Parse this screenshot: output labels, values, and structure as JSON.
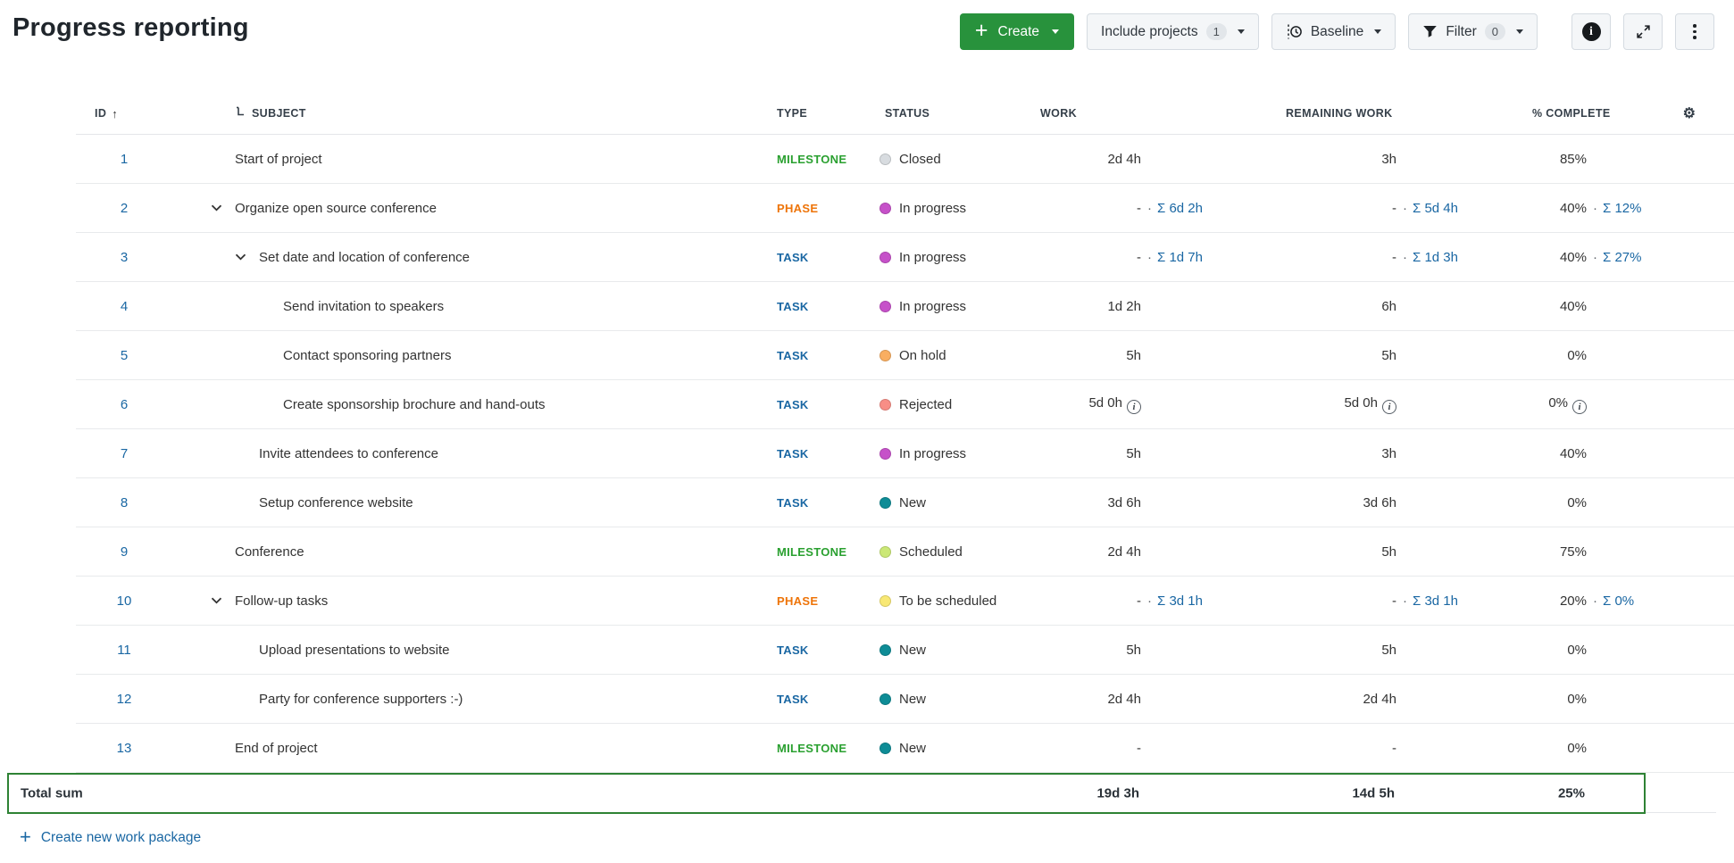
{
  "header": {
    "title": "Progress reporting"
  },
  "toolbar": {
    "create_label": "Create",
    "include_projects_label": "Include projects",
    "include_projects_count": "1",
    "baseline_label": "Baseline",
    "filter_label": "Filter",
    "filter_count": "0"
  },
  "colors": {
    "link": "#1a67a3",
    "create_button": "#28923c",
    "sum_border": "#2e8234",
    "type": {
      "MILESTONE": "#2aa030",
      "PHASE": "#ee7409",
      "TASK": "#1a67a3"
    },
    "status": {
      "Closed": "#d8dce0",
      "In progress": "#c651c9",
      "On hold": "#f9ae61",
      "Rejected": "#f88e86",
      "New": "#0e8c96",
      "Scheduled": "#cbe876",
      "To be scheduled": "#f8e874"
    }
  },
  "table": {
    "columns": [
      {
        "key": "id",
        "label": "ID"
      },
      {
        "key": "subject",
        "label": "SUBJECT"
      },
      {
        "key": "type",
        "label": "TYPE"
      },
      {
        "key": "status",
        "label": "STATUS"
      },
      {
        "key": "work",
        "label": "WORK"
      },
      {
        "key": "remaining",
        "label": "REMAINING WORK"
      },
      {
        "key": "percent",
        "label": "% COMPLETE"
      },
      {
        "key": "settings",
        "label": ""
      }
    ],
    "rows": [
      {
        "id": "1",
        "subject": "Start of project",
        "level": 0,
        "chevron": false,
        "type": "MILESTONE",
        "status": "Closed",
        "work": {
          "own": "2d 4h"
        },
        "remaining": {
          "own": "3h"
        },
        "percent": {
          "own": "85%"
        }
      },
      {
        "id": "2",
        "subject": "Organize open source conference",
        "level": 0,
        "chevron": true,
        "type": "PHASE",
        "status": "In progress",
        "work": {
          "own": "-",
          "sum": "Σ 6d 2h"
        },
        "remaining": {
          "own": "-",
          "sum": "Σ 5d 4h"
        },
        "percent": {
          "own": "40%",
          "sum": "Σ 12%"
        }
      },
      {
        "id": "3",
        "subject": "Set date and location of conference",
        "level": 1,
        "chevron": true,
        "type": "TASK",
        "status": "In progress",
        "work": {
          "own": "-",
          "sum": "Σ 1d 7h"
        },
        "remaining": {
          "own": "-",
          "sum": "Σ 1d 3h"
        },
        "percent": {
          "own": "40%",
          "sum": "Σ 27%"
        }
      },
      {
        "id": "4",
        "subject": "Send invitation to speakers",
        "level": 2,
        "chevron": false,
        "type": "TASK",
        "status": "In progress",
        "work": {
          "own": "1d 2h"
        },
        "remaining": {
          "own": "6h"
        },
        "percent": {
          "own": "40%"
        }
      },
      {
        "id": "5",
        "subject": "Contact sponsoring partners",
        "level": 2,
        "chevron": false,
        "type": "TASK",
        "status": "On hold",
        "work": {
          "own": "5h"
        },
        "remaining": {
          "own": "5h"
        },
        "percent": {
          "own": "0%"
        }
      },
      {
        "id": "6",
        "subject": "Create sponsorship brochure and hand-outs",
        "level": 2,
        "chevron": false,
        "type": "TASK",
        "status": "Rejected",
        "work": {
          "own": "5d 0h",
          "info": true
        },
        "remaining": {
          "own": "5d 0h",
          "info": true
        },
        "percent": {
          "own": "0%",
          "info": true
        }
      },
      {
        "id": "7",
        "subject": "Invite attendees to conference",
        "level": 1,
        "chevron": false,
        "type": "TASK",
        "status": "In progress",
        "work": {
          "own": "5h"
        },
        "remaining": {
          "own": "3h"
        },
        "percent": {
          "own": "40%"
        }
      },
      {
        "id": "8",
        "subject": "Setup conference website",
        "level": 1,
        "chevron": false,
        "type": "TASK",
        "status": "New",
        "work": {
          "own": "3d 6h"
        },
        "remaining": {
          "own": "3d 6h"
        },
        "percent": {
          "own": "0%"
        }
      },
      {
        "id": "9",
        "subject": "Conference",
        "level": 0,
        "chevron": false,
        "type": "MILESTONE",
        "status": "Scheduled",
        "work": {
          "own": "2d 4h"
        },
        "remaining": {
          "own": "5h"
        },
        "percent": {
          "own": "75%"
        }
      },
      {
        "id": "10",
        "subject": "Follow-up tasks",
        "level": 0,
        "chevron": true,
        "type": "PHASE",
        "status": "To be scheduled",
        "work": {
          "own": "-",
          "sum": "Σ 3d 1h"
        },
        "remaining": {
          "own": "-",
          "sum": "Σ 3d 1h"
        },
        "percent": {
          "own": "20%",
          "sum": "Σ 0%"
        }
      },
      {
        "id": "11",
        "subject": "Upload presentations to website",
        "level": 1,
        "chevron": false,
        "type": "TASK",
        "status": "New",
        "work": {
          "own": "5h"
        },
        "remaining": {
          "own": "5h"
        },
        "percent": {
          "own": "0%"
        }
      },
      {
        "id": "12",
        "subject": "Party for conference supporters :-)",
        "level": 1,
        "chevron": false,
        "type": "TASK",
        "status": "New",
        "work": {
          "own": "2d 4h"
        },
        "remaining": {
          "own": "2d 4h"
        },
        "percent": {
          "own": "0%"
        }
      },
      {
        "id": "13",
        "subject": "End of project",
        "level": 0,
        "chevron": false,
        "type": "MILESTONE",
        "status": "New",
        "work": {
          "own": "-"
        },
        "remaining": {
          "own": "-"
        },
        "percent": {
          "own": "0%"
        }
      }
    ],
    "sum": {
      "label": "Total sum",
      "work": "19d 3h",
      "remaining": "14d 5h",
      "percent": "25%"
    },
    "footer_link": "Create new work package"
  }
}
